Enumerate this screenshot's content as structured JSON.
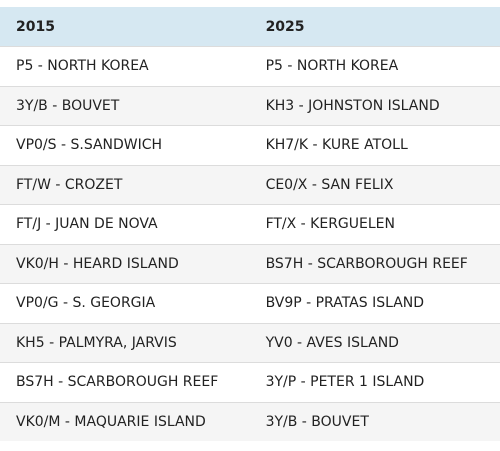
{
  "table": {
    "header": [
      "2015",
      "2025"
    ],
    "rows": [
      [
        "P5 - NORTH KOREA",
        "P5 - NORTH KOREA"
      ],
      [
        "3Y/B - BOUVET",
        "KH3 - JOHNSTON ISLAND"
      ],
      [
        "VP0/S - S.SANDWICH",
        "KH7/K - KURE ATOLL"
      ],
      [
        "FT/W - CROZET",
        "CE0/X - SAN FELIX"
      ],
      [
        "FT/J - JUAN DE NOVA",
        "FT/X - KERGUELEN"
      ],
      [
        "VK0/H - HEARD ISLAND",
        "BS7H - SCARBOROUGH REEF"
      ],
      [
        "VP0/G - S. GEORGIA",
        "BV9P - PRATAS ISLAND"
      ],
      [
        "KH5 - PALMYRA, JARVIS",
        "YV0 - AVES ISLAND"
      ],
      [
        "BS7H - SCARBOROUGH REEF",
        "3Y/P - PETER 1 ISLAND"
      ],
      [
        "VK0/M - MAQUARIE ISLAND",
        "3Y/B - BOUVET"
      ]
    ]
  }
}
